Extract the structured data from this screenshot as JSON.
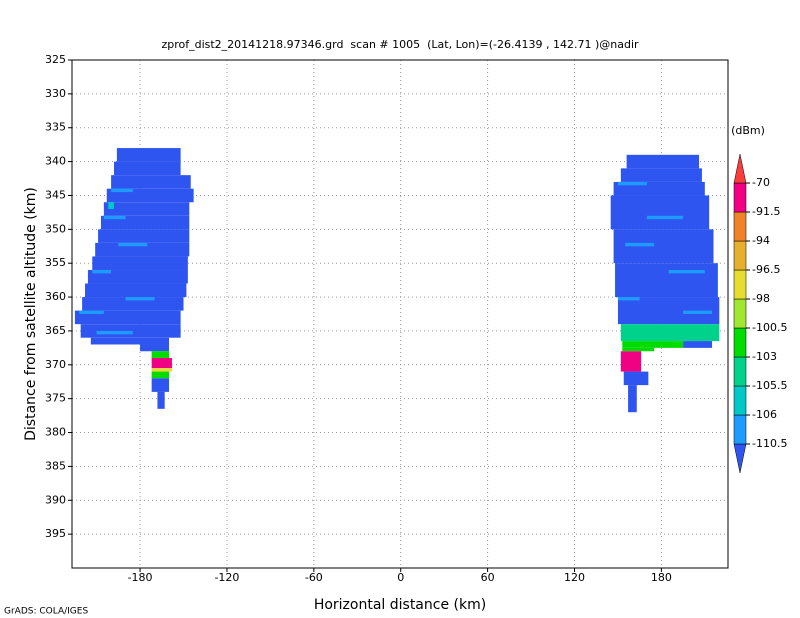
{
  "chart_data": {
    "type": "heatmap",
    "title": "zprof_dist2_20141218.97346.grd  scan # 1005  (Lat, Lon)=(-26.4139 , 142.71 )@nadir",
    "x_label": "Horizontal distance (km)",
    "y_label": "Distance from satellite altitude (km)",
    "footer": "GrADS: COLA/IGES",
    "xlim": [
      -227,
      226
    ],
    "ylim": [
      400,
      325
    ],
    "xticks": [
      -180,
      -120,
      -60,
      0,
      60,
      120,
      180
    ],
    "yticks": [
      325,
      330,
      335,
      340,
      345,
      350,
      355,
      360,
      365,
      370,
      375,
      380,
      385,
      390,
      395
    ],
    "grid": true,
    "colorbar": {
      "title": "(dBm)",
      "levels": [
        -110.5,
        -106,
        -105.5,
        -103,
        -100.5,
        -98,
        -96.5,
        -94,
        -91.5,
        -70
      ],
      "colors": [
        "#2f55f0",
        "#1e9bff",
        "#00c8c8",
        "#00d28c",
        "#00dc00",
        "#a0e632",
        "#e6dc32",
        "#e6af2d",
        "#f08228",
        "#f00082",
        "#fa3c3c"
      ]
    },
    "cells": [
      {
        "x0": -196,
        "x1": -152,
        "y0": 338,
        "y1": 340,
        "value": -112
      },
      {
        "x0": -198,
        "x1": -152,
        "y0": 340,
        "y1": 342,
        "value": -112
      },
      {
        "x0": -200,
        "x1": -145,
        "y0": 342,
        "y1": 344,
        "value": -112
      },
      {
        "x0": -203,
        "x1": -143,
        "y0": 344,
        "y1": 346,
        "value": -112
      },
      {
        "x0": -205,
        "x1": -146,
        "y0": 346,
        "y1": 348,
        "value": -112
      },
      {
        "x0": -207,
        "x1": -146,
        "y0": 348,
        "y1": 350,
        "value": -112
      },
      {
        "x0": -209,
        "x1": -146,
        "y0": 350,
        "y1": 352,
        "value": -112
      },
      {
        "x0": -211,
        "x1": -146,
        "y0": 352,
        "y1": 354,
        "value": -112
      },
      {
        "x0": -213,
        "x1": -147,
        "y0": 354,
        "y1": 356,
        "value": -112
      },
      {
        "x0": -216,
        "x1": -147,
        "y0": 356,
        "y1": 358,
        "value": -112
      },
      {
        "x0": -218,
        "x1": -148,
        "y0": 358,
        "y1": 360,
        "value": -112
      },
      {
        "x0": -220,
        "x1": -150,
        "y0": 360,
        "y1": 362,
        "value": -112
      },
      {
        "x0": -225,
        "x1": -152,
        "y0": 362,
        "y1": 364,
        "value": -112
      },
      {
        "x0": -221,
        "x1": -152,
        "y0": 364,
        "y1": 366,
        "value": -112
      },
      {
        "x0": -214,
        "x1": -160,
        "y0": 366,
        "y1": 367,
        "value": -112
      },
      {
        "x0": -180,
        "x1": -160,
        "y0": 367,
        "y1": 368,
        "value": -112
      },
      {
        "x0": -172,
        "x1": -160,
        "y0": 368,
        "y1": 369,
        "value": -102
      },
      {
        "x0": -172,
        "x1": -158,
        "y0": 369,
        "y1": 370.5,
        "value": -90
      },
      {
        "x0": -172,
        "x1": -158,
        "y0": 370.5,
        "y1": 371,
        "value": -97
      },
      {
        "x0": -172,
        "x1": -160,
        "y0": 371,
        "y1": 372,
        "value": -102
      },
      {
        "x0": -172,
        "x1": -160,
        "y0": 372,
        "y1": 374,
        "value": -112
      },
      {
        "x0": -168,
        "x1": -163,
        "y0": 374,
        "y1": 376.5,
        "value": -112
      },
      {
        "x0": -200,
        "x1": -185,
        "y0": 344,
        "y1": 344.5,
        "value": -109
      },
      {
        "x0": -202,
        "x1": -198,
        "y0": 346,
        "y1": 347,
        "value": -105.8
      },
      {
        "x0": -205,
        "x1": -190,
        "y0": 348,
        "y1": 348.5,
        "value": -109
      },
      {
        "x0": -195,
        "x1": -175,
        "y0": 352,
        "y1": 352.5,
        "value": -109
      },
      {
        "x0": -213,
        "x1": -200,
        "y0": 356,
        "y1": 356.5,
        "value": -109
      },
      {
        "x0": -190,
        "x1": -170,
        "y0": 360,
        "y1": 360.5,
        "value": -109
      },
      {
        "x0": -222,
        "x1": -205,
        "y0": 362,
        "y1": 362.5,
        "value": -109
      },
      {
        "x0": -210,
        "x1": -185,
        "y0": 365,
        "y1": 365.5,
        "value": -109
      },
      {
        "x0": 156,
        "x1": 206,
        "y0": 339,
        "y1": 341,
        "value": -112
      },
      {
        "x0": 152,
        "x1": 208,
        "y0": 341,
        "y1": 343,
        "value": -112
      },
      {
        "x0": 147,
        "x1": 210,
        "y0": 343,
        "y1": 345,
        "value": -112
      },
      {
        "x0": 145,
        "x1": 213,
        "y0": 345,
        "y1": 350,
        "value": -112
      },
      {
        "x0": 147,
        "x1": 216,
        "y0": 350,
        "y1": 355,
        "value": -112
      },
      {
        "x0": 148,
        "x1": 219,
        "y0": 355,
        "y1": 360,
        "value": -112
      },
      {
        "x0": 150,
        "x1": 220,
        "y0": 360,
        "y1": 364,
        "value": -112
      },
      {
        "x0": 152,
        "x1": 220,
        "y0": 364,
        "y1": 366.5,
        "value": -104
      },
      {
        "x0": 153,
        "x1": 195,
        "y0": 366.5,
        "y1": 367.5,
        "value": -102
      },
      {
        "x0": 195,
        "x1": 215,
        "y0": 366.5,
        "y1": 367.5,
        "value": -112
      },
      {
        "x0": 153,
        "x1": 175,
        "y0": 367.5,
        "y1": 368,
        "value": -102
      },
      {
        "x0": 152,
        "x1": 166,
        "y0": 368,
        "y1": 371,
        "value": -90
      },
      {
        "x0": 154,
        "x1": 171,
        "y0": 371,
        "y1": 373,
        "value": -112
      },
      {
        "x0": 157,
        "x1": 163,
        "y0": 373,
        "y1": 377,
        "value": -112
      },
      {
        "x0": 150,
        "x1": 170,
        "y0": 343,
        "y1": 343.5,
        "value": -109
      },
      {
        "x0": 170,
        "x1": 195,
        "y0": 348,
        "y1": 348.5,
        "value": -109
      },
      {
        "x0": 155,
        "x1": 175,
        "y0": 352,
        "y1": 352.5,
        "value": -109
      },
      {
        "x0": 185,
        "x1": 210,
        "y0": 356,
        "y1": 356.5,
        "value": -109
      },
      {
        "x0": 150,
        "x1": 165,
        "y0": 360,
        "y1": 360.5,
        "value": -109
      },
      {
        "x0": 195,
        "x1": 215,
        "y0": 362,
        "y1": 362.5,
        "value": -109
      }
    ]
  }
}
